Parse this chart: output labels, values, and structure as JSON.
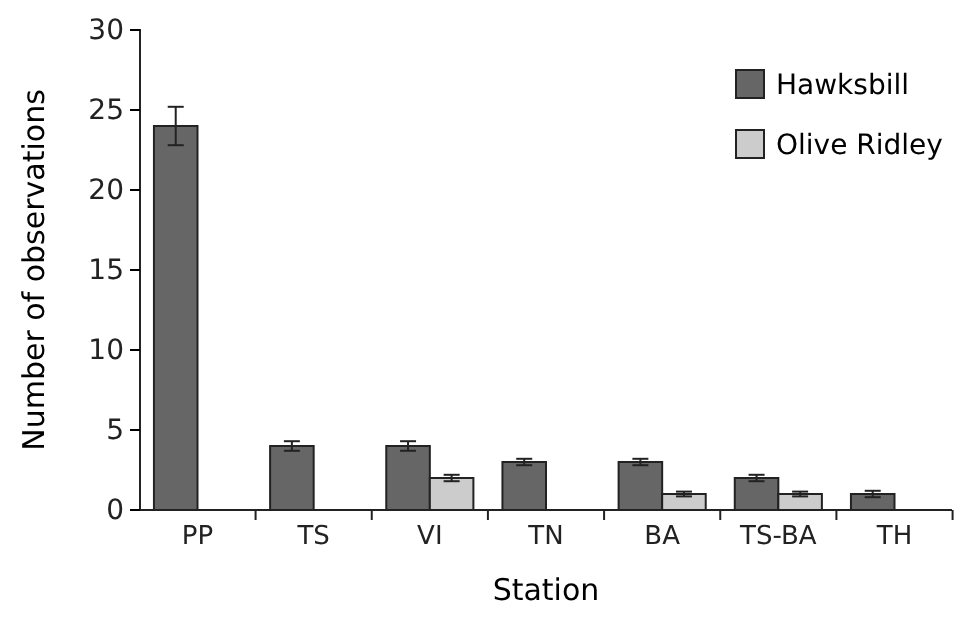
{
  "chart_data": {
    "type": "bar",
    "xlabel": "Station",
    "ylabel": "Number of observations",
    "categories": [
      "PP",
      "TS",
      "VI",
      "TN",
      "BA",
      "TS-BA",
      "TH"
    ],
    "series": [
      {
        "name": "Hawksbill",
        "color": "#666666",
        "values": [
          24,
          4,
          4,
          3,
          3,
          2,
          1
        ],
        "errors": [
          1.2,
          0.3,
          0.3,
          0.2,
          0.2,
          0.2,
          0.2
        ]
      },
      {
        "name": "Olive Ridley",
        "color": "#cccccc",
        "values": [
          null,
          null,
          2,
          null,
          1,
          1,
          null
        ],
        "errors": [
          null,
          null,
          0.2,
          null,
          0.15,
          0.15,
          null
        ]
      }
    ],
    "ylim": [
      0,
      30
    ],
    "yticks": [
      0,
      5,
      10,
      15,
      20,
      25,
      30
    ],
    "legend": "top right",
    "grid": false
  }
}
